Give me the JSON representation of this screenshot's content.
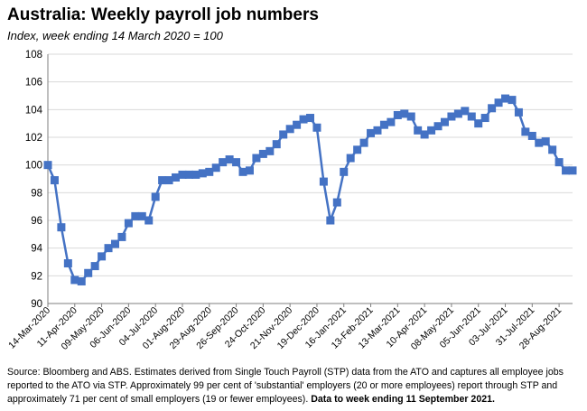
{
  "header": {
    "title": "Australia:  Weekly payroll job numbers",
    "subtitle": "Index, week ending 14 March 2020 = 100"
  },
  "footer": {
    "source_text": "Source: Bloomberg and ABS.  Estimates derived from Single Touch Payroll (STP) data from the ATO and captures all employee jobs reported to the ATO via STP.  Approximately 99 per cent of 'substantial' employers (20 or more employees) report through STP and approximately 71 per cent of small employers (19 or fewer employees).",
    "bold_note": "Data to week ending  11 September 2021."
  },
  "chart_data": {
    "type": "line",
    "title": "Australia:  Weekly payroll job numbers",
    "subtitle": "Index, week ending 14 March 2020 = 100",
    "xlabel": "",
    "ylabel": "",
    "ylim": [
      90,
      108
    ],
    "yticks": [
      90,
      92,
      94,
      96,
      98,
      100,
      102,
      104,
      106,
      108
    ],
    "xtick_labels": [
      "14-Mar-2020",
      "11-Apr-2020",
      "09-May-2020",
      "06-Jun-2020",
      "04-Jul-2020",
      "01-Aug-2020",
      "29-Aug-2020",
      "26-Sep-2020",
      "24-Oct-2020",
      "21-Nov-2020",
      "19-Dec-2020",
      "16-Jan-2021",
      "13-Feb-2021",
      "13-Mar-2021",
      "10-Apr-2021",
      "08-May-2021",
      "05-Jun-2021",
      "03-Jul-2021",
      "31-Jul-2021",
      "28-Aug-2021"
    ],
    "grid": "horizontal",
    "legend": "none",
    "color": "#4472C4",
    "series": [
      {
        "values": [
          100.0,
          98.9,
          95.5,
          92.9,
          91.7,
          91.6,
          92.2,
          92.7,
          93.4,
          94.0,
          94.3,
          94.8,
          95.8,
          96.3,
          96.3,
          96.0,
          97.7,
          98.9,
          98.9,
          99.1,
          99.3,
          99.3,
          99.3,
          99.4,
          99.5,
          99.8,
          100.2,
          100.4,
          100.2,
          99.5,
          99.6,
          100.5,
          100.8,
          101.0,
          101.5,
          102.2,
          102.6,
          102.9,
          103.3,
          103.4,
          102.7,
          98.8,
          96.0,
          97.3,
          99.5,
          100.5,
          101.1,
          101.6,
          102.3,
          102.5,
          102.9,
          103.1,
          103.6,
          103.7,
          103.5,
          102.5,
          102.2,
          102.5,
          102.8,
          103.1,
          103.5,
          103.7,
          103.9,
          103.5,
          103.0,
          103.4,
          104.1,
          104.5,
          104.8,
          104.7,
          103.8,
          102.4,
          102.1,
          101.6,
          101.7,
          101.1,
          100.2,
          99.6,
          99.6
        ]
      }
    ]
  }
}
